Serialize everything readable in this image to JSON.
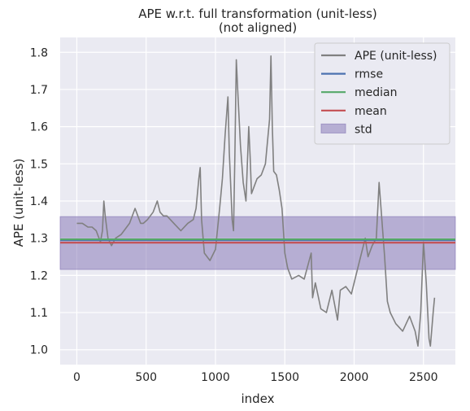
{
  "chart_data": {
    "type": "line",
    "title": "APE w.r.t. full transformation (unit-less)",
    "subtitle": "(not aligned)",
    "xlabel": "index",
    "ylabel": "APE (unit-less)",
    "xlim": [
      -120,
      2730
    ],
    "ylim": [
      0.96,
      1.84
    ],
    "x_ticks": [
      0,
      500,
      1000,
      1500,
      2000,
      2500
    ],
    "y_ticks": [
      1.0,
      1.1,
      1.2,
      1.3,
      1.4,
      1.5,
      1.6,
      1.7,
      1.8
    ],
    "grid": true,
    "legend_position": "top-right",
    "colors": {
      "background": "#eaeaf2",
      "grid": "#ffffff",
      "ape": "#808080",
      "rmse": "#4c72b0",
      "median": "#55a868",
      "mean": "#c44e52",
      "std": "#8172b3"
    },
    "series": [
      {
        "name": "APE (unit-less)",
        "x": [
          0,
          40,
          80,
          110,
          140,
          170,
          185,
          195,
          205,
          225,
          250,
          280,
          320,
          380,
          420,
          450,
          460,
          480,
          510,
          550,
          580,
          600,
          625,
          650,
          700,
          750,
          800,
          840,
          860,
          880,
          890,
          900,
          920,
          960,
          1000,
          1030,
          1050,
          1070,
          1090,
          1100,
          1120,
          1130,
          1140,
          1150,
          1160,
          1180,
          1200,
          1220,
          1240,
          1250,
          1260,
          1280,
          1300,
          1330,
          1360,
          1390,
          1400,
          1410,
          1420,
          1440,
          1460,
          1480,
          1500,
          1520,
          1550,
          1600,
          1640,
          1690,
          1700,
          1720,
          1760,
          1800,
          1840,
          1880,
          1900,
          1940,
          1980,
          2000,
          2040,
          2080,
          2100,
          2130,
          2160,
          2180,
          2200,
          2220,
          2240,
          2260,
          2300,
          2350,
          2400,
          2440,
          2460,
          2480,
          2500,
          2520,
          2540,
          2550,
          2570,
          2580
        ],
        "values": [
          1.34,
          1.34,
          1.33,
          1.33,
          1.32,
          1.29,
          1.32,
          1.4,
          1.36,
          1.3,
          1.28,
          1.3,
          1.31,
          1.34,
          1.38,
          1.35,
          1.34,
          1.34,
          1.35,
          1.37,
          1.4,
          1.37,
          1.36,
          1.36,
          1.34,
          1.32,
          1.34,
          1.35,
          1.38,
          1.46,
          1.49,
          1.35,
          1.26,
          1.24,
          1.27,
          1.38,
          1.46,
          1.58,
          1.68,
          1.53,
          1.35,
          1.32,
          1.53,
          1.78,
          1.7,
          1.55,
          1.45,
          1.4,
          1.6,
          1.52,
          1.42,
          1.44,
          1.46,
          1.47,
          1.5,
          1.62,
          1.79,
          1.6,
          1.48,
          1.47,
          1.43,
          1.38,
          1.26,
          1.22,
          1.19,
          1.2,
          1.19,
          1.26,
          1.14,
          1.18,
          1.11,
          1.1,
          1.16,
          1.08,
          1.16,
          1.17,
          1.15,
          1.18,
          1.24,
          1.3,
          1.25,
          1.28,
          1.3,
          1.45,
          1.35,
          1.25,
          1.13,
          1.1,
          1.07,
          1.05,
          1.09,
          1.05,
          1.01,
          1.1,
          1.29,
          1.18,
          1.03,
          1.01,
          1.1,
          1.14
        ]
      }
    ],
    "stats": [
      {
        "name": "rmse",
        "value": 1.295
      },
      {
        "name": "median",
        "value": 1.297
      },
      {
        "name": "mean",
        "value": 1.288
      }
    ],
    "std_band": {
      "name": "std",
      "lower": 1.216,
      "upper": 1.358
    },
    "legend": [
      "APE (unit-less)",
      "rmse",
      "median",
      "mean",
      "std"
    ]
  }
}
